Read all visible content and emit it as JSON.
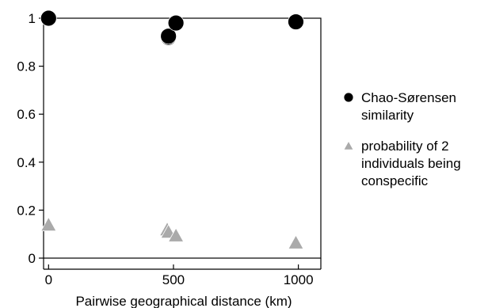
{
  "chart_data": {
    "type": "scatter",
    "title": "",
    "xlabel": "Pairwise geographical distance (km)",
    "ylabel": "",
    "xlim": [
      -20,
      1090
    ],
    "ylim": [
      0,
      1
    ],
    "x_ticks": [
      0,
      500,
      1000
    ],
    "x_tick_labels": [
      "0",
      "500",
      "1000"
    ],
    "y_ticks": [
      0,
      0.2,
      0.4,
      0.6,
      0.8,
      1
    ],
    "y_tick_labels": [
      "0",
      "0.2",
      "0.4",
      "0.6",
      "0.8",
      "1"
    ],
    "grid": false,
    "legend_position": "right",
    "series": [
      {
        "name": "Chao-Sørensen similarity",
        "name_lines": [
          "Chao-Sørensen",
          "similarity"
        ],
        "marker": "circle",
        "color": "#000000",
        "points": [
          {
            "x": 0,
            "y": 1.0
          },
          {
            "x": 480,
            "y": 0.92
          },
          {
            "x": 480,
            "y": 0.925
          },
          {
            "x": 510,
            "y": 0.98
          },
          {
            "x": 990,
            "y": 0.985
          }
        ]
      },
      {
        "name": "probability of 2 individuals being conspecific",
        "name_lines": [
          "probability of 2",
          "individuals being",
          "conspecific"
        ],
        "marker": "triangle",
        "color": "#aaaaaa",
        "points": [
          {
            "x": 0,
            "y": 0.135
          },
          {
            "x": 475,
            "y": 0.115
          },
          {
            "x": 480,
            "y": 0.105
          },
          {
            "x": 510,
            "y": 0.09
          },
          {
            "x": 990,
            "y": 0.06
          }
        ]
      }
    ]
  }
}
